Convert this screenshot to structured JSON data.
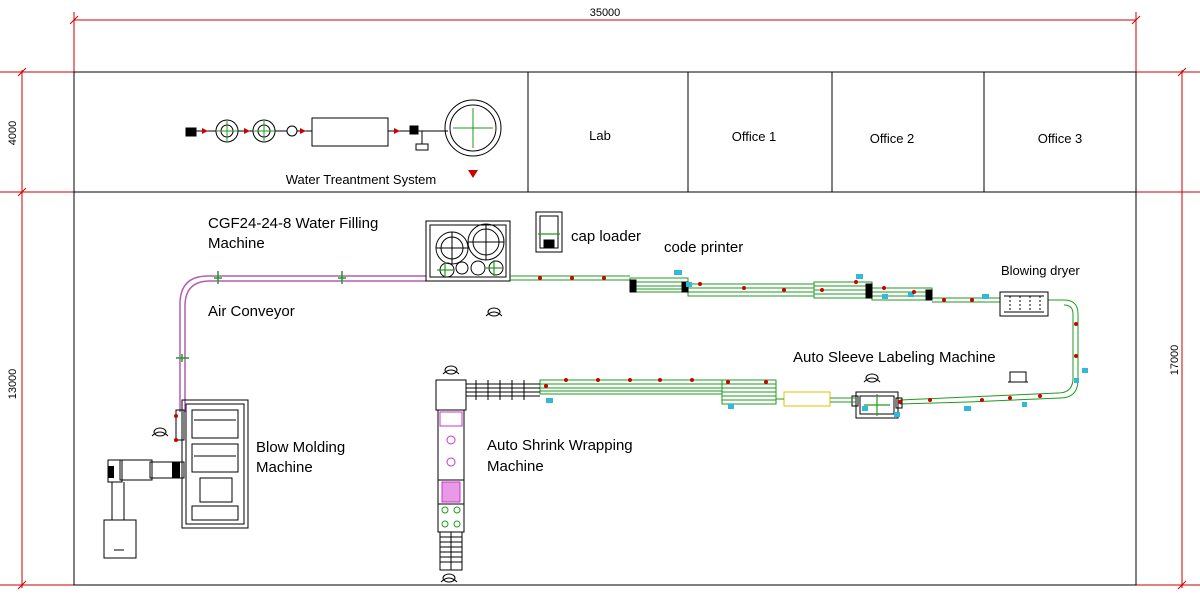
{
  "dimensions": {
    "total_width": "35000",
    "top_height": "4000",
    "bottom_height": "13000",
    "total_height": "17000"
  },
  "rooms": {
    "water_system": "Water Treantment System",
    "lab": "Lab",
    "office1": "Office 1",
    "office2": "Office 2",
    "office3": "Office 3"
  },
  "labels": {
    "filling_line1": "CGF24-24-8 Water Filling",
    "filling_line2": "Machine",
    "cap_loader": "cap loader",
    "code_printer": "code printer",
    "blowing_dryer": "Blowing dryer",
    "air_conveyor": "Air Conveyor",
    "sleeve_labeling": "Auto Sleeve Labeling Machine",
    "blow_molding_line1": "Blow Molding",
    "blow_molding_line2": "Machine",
    "shrink_line1": "Auto Shrink Wrapping",
    "shrink_line2": "Machine"
  },
  "colors": {
    "dimension": "#cc0000",
    "wall": "#000000",
    "conveyor": "#1f9a1f",
    "air_conveyor": "#b35fb3",
    "sensor": "#33b8d9",
    "marker": "#cc0000",
    "accent_pink": "#cc33cc",
    "yellow": "#e6c000"
  }
}
